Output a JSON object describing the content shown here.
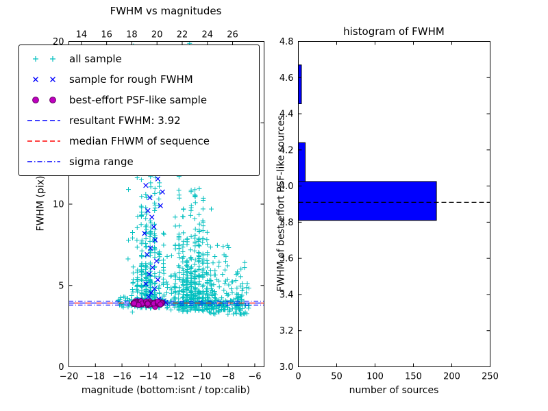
{
  "figure": {
    "background": "#ffffff"
  },
  "chart_data": [
    {
      "type": "scatter",
      "title": "FWHM vs magnitudes",
      "xlabel": "magnitude (bottom:isnt / top:calib)",
      "ylabel": "FWHM (pix)",
      "xlim": [
        -20,
        -5.3
      ],
      "ylim": [
        0,
        20
      ],
      "grid": false,
      "x_ticks": [
        -20,
        -18,
        -16,
        -14,
        -12,
        -10,
        -8,
        -6
      ],
      "x_tick_labels": [
        "−20",
        "−18",
        "−16",
        "−14",
        "−12",
        "−10",
        "−8",
        "−6"
      ],
      "y_ticks": [
        0,
        5,
        10,
        15,
        20
      ],
      "y_tick_labels": [
        "0",
        "5",
        "10",
        "15",
        "20"
      ],
      "top_axis": {
        "lim": [
          13.0,
          28.5
        ],
        "ticks": [
          14,
          16,
          18,
          20,
          22,
          24,
          26
        ],
        "tick_labels": [
          "14",
          "16",
          "18",
          "20",
          "22",
          "24",
          "26"
        ]
      },
      "series": [
        {
          "name": "all sample",
          "marker": "plus",
          "color": "#00bfbf",
          "clusters": [
            {
              "n": 330,
              "x_mean": -14.05,
              "x_sd": 0.55,
              "snap": 0.33,
              "y_min": 3.6,
              "y_max": 20,
              "y_decay": 3.0
            },
            {
              "n": 470,
              "x_mean": -10.7,
              "x_sd": 0.85,
              "snap": 0.3,
              "y_min": 3.4,
              "y_max": 20,
              "y_decay": 2.2
            },
            {
              "n": 140,
              "x_min": -9.6,
              "x_max": -6.4,
              "y_min": 3.2,
              "y_max": 7.5,
              "y_decay": 1.0
            },
            {
              "n": 190,
              "x_min": -16.3,
              "x_max": -7.0,
              "y_mean": 3.93,
              "y_sd": 0.16
            },
            {
              "n": 14,
              "x_min": -15.2,
              "x_max": -9.8,
              "y_min": 17.3,
              "y_max": 20.0
            }
          ]
        },
        {
          "name": "sample for rough FWHM",
          "marker": "x",
          "color": "#0000ff",
          "points": [
            [
              -14.45,
              11.9
            ],
            [
              -14.2,
              11.15
            ],
            [
              -13.9,
              10.4
            ],
            [
              -14.05,
              9.6
            ],
            [
              -13.75,
              9.2
            ],
            [
              -13.6,
              8.6
            ],
            [
              -14.3,
              8.2
            ],
            [
              -13.5,
              7.8
            ],
            [
              -13.85,
              7.3
            ],
            [
              -14.1,
              6.9
            ],
            [
              -13.4,
              6.5
            ],
            [
              -13.7,
              6.1
            ],
            [
              -13.95,
              5.7
            ],
            [
              -13.3,
              5.35
            ],
            [
              -14.2,
              5.1
            ],
            [
              -13.55,
              4.8
            ],
            [
              -13.8,
              4.55
            ],
            [
              -14.0,
              4.3
            ],
            [
              -13.2,
              4.15
            ],
            [
              -14.35,
              4.05
            ],
            [
              -12.95,
              3.95
            ],
            [
              -13.45,
              3.9
            ],
            [
              -14.6,
              3.93
            ],
            [
              -14.9,
              3.88
            ],
            [
              -15.05,
              3.91
            ],
            [
              -12.7,
              3.94
            ],
            [
              -12.9,
              4.02
            ],
            [
              -13.1,
              9.9
            ],
            [
              -13.3,
              11.55
            ],
            [
              -12.95,
              10.75
            ],
            [
              -14.7,
              4.1
            ],
            [
              -13.65,
              3.85
            ]
          ]
        },
        {
          "name": "best-effort PSF-like sample",
          "marker": "circle",
          "color": "#bf00bf",
          "edge": "#660066",
          "clusters": [
            {
              "n": 80,
              "x_min": -15.15,
              "x_max": -12.95,
              "y_mean": 3.9,
              "y_sd": 0.06
            }
          ]
        }
      ],
      "lines": [
        {
          "name": "resultant FWHM: 3.92",
          "y": 3.92,
          "color": "#0000ff",
          "dash": "8,8",
          "offset": 0
        },
        {
          "name": "median FHWM of sequence",
          "y": 3.92,
          "color": "#ff0000",
          "dash": "8,8",
          "offset": 8
        },
        {
          "name": "sigma range lower",
          "y": 3.8,
          "color": "#0000ff",
          "dash": "6.5,3,1,3",
          "offset": 0
        },
        {
          "name": "sigma range upper",
          "y": 4.03,
          "color": "#0000ff",
          "dash": "6.5,3,1,3",
          "offset": 0
        }
      ],
      "legend": [
        {
          "label": "all sample",
          "type": "scatter",
          "marker": "plus",
          "color": "#00bfbf"
        },
        {
          "label": "sample for rough FWHM",
          "type": "scatter",
          "marker": "x",
          "color": "#0000ff"
        },
        {
          "label": "best-effort PSF-like sample",
          "type": "scatter",
          "marker": "circle",
          "color": "#bf00bf",
          "edge": "#660066"
        },
        {
          "label": "resultant FWHM: 3.92",
          "type": "line",
          "color": "#0000ff",
          "dash": "7,4"
        },
        {
          "label": "median FHWM of sequence",
          "type": "line",
          "color": "#ff0000",
          "dash": "7,4"
        },
        {
          "label": "sigma range",
          "type": "line",
          "color": "#0000ff",
          "dash": "7,3,1.5,3"
        }
      ]
    },
    {
      "type": "barh",
      "title": "histogram of FWHM",
      "xlabel": "number of sources",
      "ylabel": "FWHM of best-effort PSF-like sources",
      "xlim": [
        0,
        250
      ],
      "ylim": [
        3.0,
        4.8
      ],
      "x_ticks": [
        0,
        50,
        100,
        150,
        200,
        250
      ],
      "x_tick_labels": [
        "0",
        "50",
        "100",
        "150",
        "200",
        "250"
      ],
      "y_ticks": [
        3.0,
        3.2,
        3.4,
        3.6,
        3.8,
        4.0,
        4.2,
        4.4,
        4.6,
        4.8
      ],
      "y_tick_labels": [
        "3.0",
        "3.2",
        "3.4",
        "3.6",
        "3.8",
        "4.0",
        "4.2",
        "4.4",
        "4.6",
        "4.8"
      ],
      "bar_color": "#0000ff",
      "bars": [
        {
          "y_from": 3.81,
          "y_to": 4.025,
          "value": 180
        },
        {
          "y_from": 4.025,
          "y_to": 4.24,
          "value": 9
        },
        {
          "y_from": 4.455,
          "y_to": 4.67,
          "value": 4
        }
      ],
      "median_line": {
        "y": 3.91,
        "color": "#000000",
        "dash": "7,4"
      }
    }
  ]
}
